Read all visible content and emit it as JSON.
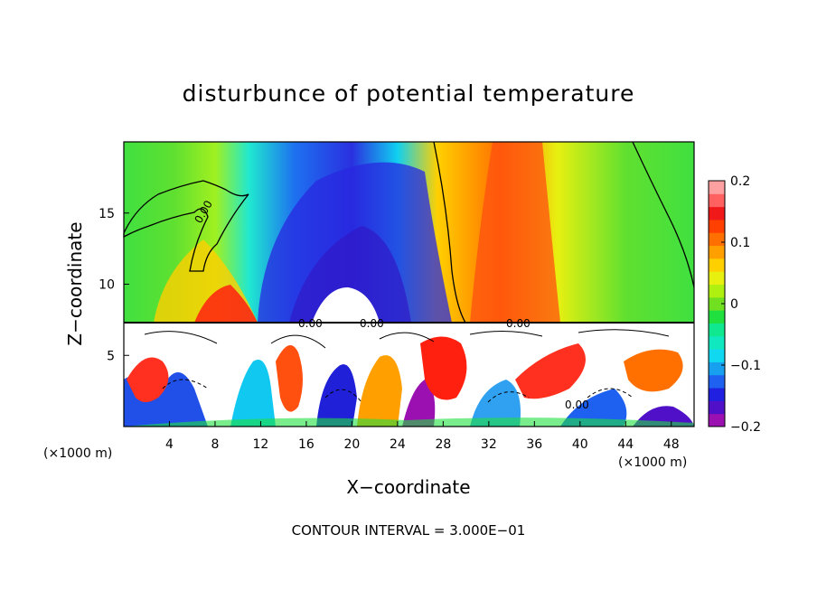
{
  "chart_data": {
    "type": "heatmap",
    "title": "disturbunce of potential temperature",
    "xlabel": "X−coordinate",
    "ylabel": "Z−coordinate",
    "x_unit_label": "(×1000 m)",
    "xlim": [
      0,
      50
    ],
    "ylim": [
      0,
      20
    ],
    "x_ticks": [
      4,
      8,
      12,
      16,
      20,
      24,
      28,
      32,
      36,
      40,
      44,
      48
    ],
    "y_ticks": [
      5,
      10,
      15
    ],
    "colorbar": {
      "range": [
        -0.2,
        0.2
      ],
      "ticks": [
        "0.2",
        "0.1",
        "0",
        "−0.1",
        "−0.2"
      ],
      "colors": [
        "#9a10b0",
        "#5010c8",
        "#2020e0",
        "#1e60f0",
        "#18a0f0",
        "#10d8f0",
        "#10e8c0",
        "#10e890",
        "#20e040",
        "#70e020",
        "#b0f010",
        "#e8f010",
        "#ffd000",
        "#ffa000",
        "#ff7000",
        "#ff4000",
        "#f01818",
        "#ff6060",
        "#ffa0a0"
      ]
    },
    "contour_interval": "CONTOUR INTERVAL = 3.000E−01",
    "contour_labels": [
      "0.00",
      "0.00",
      "0.00",
      "0.00",
      "0.00"
    ]
  }
}
